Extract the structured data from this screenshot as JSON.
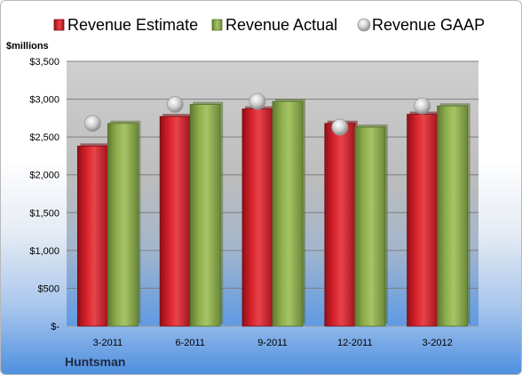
{
  "chart_data": {
    "type": "bar",
    "categories": [
      "3-2011",
      "6-2011",
      "9-2011",
      "12-2011",
      "3-2012"
    ],
    "series": [
      {
        "name": "Revenue Estimate",
        "kind": "bar",
        "color": "#d0202b",
        "values": [
          2380,
          2770,
          2870,
          2680,
          2800
        ]
      },
      {
        "name": "Revenue Actual",
        "kind": "bar",
        "color": "#8eae4e",
        "values": [
          2680,
          2930,
          2970,
          2630,
          2910
        ]
      },
      {
        "name": "Revenue GAAP",
        "kind": "marker",
        "color": "#c8c8c8",
        "values": [
          2680,
          2930,
          2970,
          2630,
          2910
        ]
      }
    ],
    "ylim": [
      0,
      3500
    ],
    "yticks": [
      0,
      500,
      1000,
      1500,
      2000,
      2500,
      3000,
      3500
    ],
    "ytick_labels": [
      "$-",
      "$500",
      "$1,000",
      "$1,500",
      "$2,000",
      "$2,500",
      "$3,000",
      "$3,500"
    ],
    "unit_label": "$millions",
    "company": "Huntsman",
    "grid": true,
    "legend_position": "top"
  }
}
